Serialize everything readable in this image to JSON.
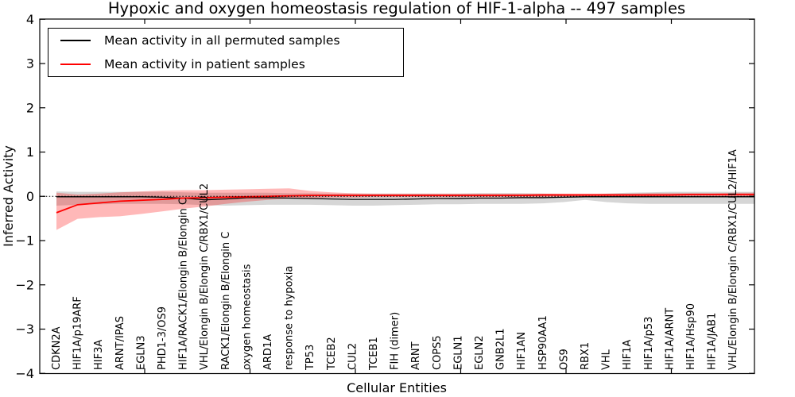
{
  "chart_data": {
    "type": "line",
    "title": "Hypoxic and oxygen homeostasis regulation of HIF-1-alpha -- 497 samples",
    "xlabel": "Cellular Entities",
    "ylabel": "Inferred Activity",
    "ylim": [
      -4,
      4
    ],
    "yticks": [
      -4,
      -3,
      -2,
      -1,
      0,
      1,
      2,
      3,
      4
    ],
    "grid": false,
    "legend_position": "upper left",
    "zero_reference_line": true,
    "categories": [
      "CDKN2A",
      "HIF1A/p19ARF",
      "HIF3A",
      "ARNT/IPAS",
      "EGLN3",
      "PHD1-3/OS9",
      "HIF1A/RACK1/Elongin B/Elongin C",
      "VHL/Elongin B/Elongin C/RBX1/CUL2",
      "RACK1/Elongin B/Elongin C",
      "oxygen homeostasis",
      "ARD1A",
      "response to hypoxia",
      "TP53",
      "TCEB2",
      "CUL2",
      "TCEB1",
      "FIH (dimer)",
      "ARNT",
      "COPS5",
      "EGLN1",
      "EGLN2",
      "GNB2L1",
      "HIF1AN",
      "HSP90AA1",
      "OS9",
      "RBX1",
      "VHL",
      "HIF1A",
      "HIF1A/p53",
      "HIF1A/ARNT",
      "HIF1A/Hsp90",
      "HIF1A/JAB1",
      "VHL/Elongin B/Elongin C/RBX1/CUL2/HIF1A"
    ],
    "series": [
      {
        "id": "permuted-mean",
        "name": "Mean activity in all permuted samples",
        "color": "#000000",
        "line_width": 1.3,
        "band_color": "rgba(0,0,0,0.16)",
        "values": [
          -0.01,
          -0.01,
          -0.01,
          -0.01,
          -0.01,
          -0.02,
          -0.04,
          -0.08,
          -0.06,
          -0.03,
          -0.03,
          -0.04,
          -0.05,
          -0.06,
          -0.07,
          -0.07,
          -0.07,
          -0.06,
          -0.05,
          -0.05,
          -0.04,
          -0.04,
          -0.03,
          -0.03,
          -0.02,
          -0.01,
          -0.01,
          -0.01,
          -0.01,
          -0.01,
          -0.01,
          -0.01,
          -0.01
        ],
        "band_upper": [
          0.11,
          0.1,
          0.1,
          0.1,
          0.1,
          0.1,
          0.09,
          0.08,
          0.08,
          0.08,
          0.08,
          0.07,
          0.07,
          0.06,
          0.06,
          0.06,
          0.06,
          0.06,
          0.06,
          0.06,
          0.07,
          0.07,
          0.07,
          0.06,
          0.05,
          0.03,
          0.06,
          0.08,
          0.09,
          0.1,
          0.1,
          0.1,
          0.1
        ],
        "band_lower": [
          -0.21,
          -0.19,
          -0.18,
          -0.17,
          -0.17,
          -0.17,
          -0.18,
          -0.2,
          -0.21,
          -0.2,
          -0.19,
          -0.19,
          -0.19,
          -0.2,
          -0.21,
          -0.21,
          -0.2,
          -0.19,
          -0.18,
          -0.18,
          -0.17,
          -0.17,
          -0.17,
          -0.16,
          -0.13,
          -0.08,
          -0.13,
          -0.16,
          -0.17,
          -0.17,
          -0.17,
          -0.17,
          -0.17
        ]
      },
      {
        "id": "patient-mean",
        "name": "Mean activity in patient samples",
        "color": "#ff0000",
        "line_width": 1.8,
        "band_color": "rgba(255,0,0,0.28)",
        "values": [
          -0.37,
          -0.19,
          -0.15,
          -0.11,
          -0.09,
          -0.07,
          -0.04,
          -0.03,
          -0.02,
          -0.01,
          0.0,
          0.01,
          0.02,
          0.02,
          0.02,
          0.02,
          0.02,
          0.02,
          0.02,
          0.02,
          0.02,
          0.02,
          0.02,
          0.03,
          0.03,
          0.03,
          0.03,
          0.03,
          0.03,
          0.03,
          0.04,
          0.04,
          0.04
        ],
        "band_upper": [
          0.08,
          0.04,
          0.06,
          0.09,
          0.11,
          0.13,
          0.14,
          0.14,
          0.15,
          0.16,
          0.17,
          0.18,
          0.12,
          0.09,
          0.07,
          0.06,
          0.06,
          0.06,
          0.06,
          0.06,
          0.06,
          0.06,
          0.06,
          0.06,
          0.06,
          0.06,
          0.06,
          0.06,
          0.07,
          0.07,
          0.07,
          0.07,
          0.08
        ],
        "band_lower": [
          -0.76,
          -0.51,
          -0.47,
          -0.45,
          -0.4,
          -0.34,
          -0.28,
          -0.23,
          -0.17,
          -0.12,
          -0.08,
          -0.05,
          -0.04,
          -0.03,
          -0.03,
          -0.02,
          -0.02,
          -0.02,
          -0.02,
          -0.02,
          -0.02,
          -0.02,
          -0.02,
          -0.02,
          -0.02,
          -0.01,
          -0.01,
          -0.01,
          -0.01,
          -0.01,
          0.0,
          0.0,
          0.0
        ]
      }
    ]
  },
  "legend": {
    "entries": [
      {
        "label": "Mean activity in all permuted samples",
        "color": "#000000"
      },
      {
        "label": "Mean activity in patient samples",
        "color": "#ff0000"
      }
    ]
  }
}
